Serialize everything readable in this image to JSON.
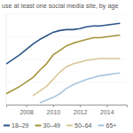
{
  "chart_data": {
    "type": "line",
    "title": "use at least one social media site, by age",
    "x": [
      2006.5,
      2007.5,
      2008.5,
      2009.0,
      2009.5,
      2010.0,
      2010.5,
      2011.0,
      2011.5,
      2012.0,
      2012.5,
      2013.0,
      2013.5,
      2014.0,
      2014.5,
      2015.0
    ],
    "series": [
      {
        "name": "18–29",
        "color": "#2b5487",
        "values": [
          45,
          55,
          67,
          72,
          76,
          80,
          82,
          83,
          83,
          84,
          86,
          87,
          87,
          88,
          89,
          90
        ]
      },
      {
        "name": "30–49",
        "color": "#a39438",
        "values": [
          12,
          20,
          30,
          38,
          45,
          55,
          60,
          65,
          68,
          70,
          72,
          74,
          74,
          75,
          76,
          77
        ]
      },
      {
        "name": "50–64",
        "color": "#d8c696",
        "values": [
          null,
          null,
          10,
          15,
          20,
          28,
          36,
          42,
          45,
          47,
          49,
          50,
          51,
          51,
          51,
          51
        ]
      },
      {
        "name": "65+",
        "color": "#a8c5e0",
        "values": [
          null,
          null,
          null,
          2,
          5,
          8,
          12,
          18,
          22,
          25,
          28,
          30,
          32,
          33,
          34,
          35
        ]
      }
    ],
    "xlim": [
      2006.5,
      2015.5
    ],
    "xticks": [
      2008,
      2010,
      2012,
      2014
    ],
    "ylim": [
      0,
      100
    ],
    "yticks": [
      0,
      25,
      50,
      75,
      100
    ],
    "grid": true,
    "tick_labels": "x",
    "legend": "bottom"
  }
}
